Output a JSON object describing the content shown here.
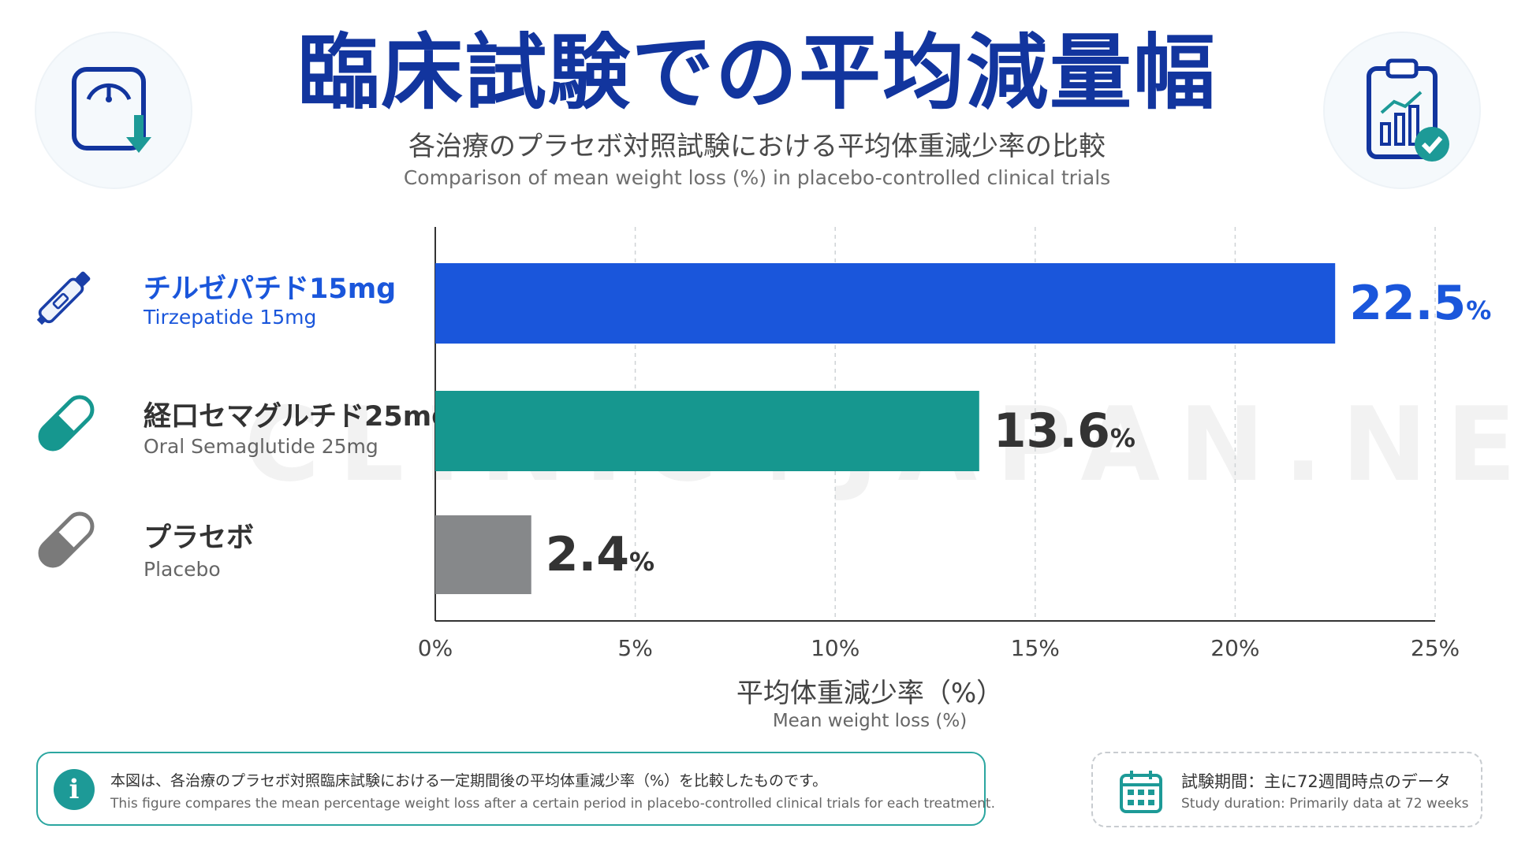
{
  "header": {
    "title": "臨床試験での平均減量幅",
    "subtitle_jp": "各治療のプラセボ対照試験における平均体重減少率の比較",
    "subtitle_en": "Comparison of mean weight loss (%) in placebo-controlled clinical trials"
  },
  "icons": {
    "top_left": "scale-weight-down-icon",
    "top_right": "clipboard-chart-check-icon",
    "row_icons": [
      "injection-pen-icon",
      "capsule-icon",
      "capsule-icon"
    ],
    "info": "info-icon",
    "calendar": "calendar-icon"
  },
  "rows": [
    {
      "label_jp": "チルゼパチド15mg",
      "label_en": "Tirzepatide 15mg",
      "value_text": "22.5",
      "unit": "%",
      "color": "#1a56db",
      "label_color": "#1a56db"
    },
    {
      "label_jp": "経口セマグルチド25mg",
      "label_en": "Oral Semaglutide 25mg",
      "value_text": "13.6",
      "unit": "%",
      "color": "#16978f",
      "label_color": "#333333"
    },
    {
      "label_jp": "プラセボ",
      "label_en": "Placebo",
      "value_text": "2.4",
      "unit": "%",
      "color": "#86888a",
      "label_color": "#333333"
    }
  ],
  "chart_data": {
    "type": "bar",
    "orientation": "horizontal",
    "categories": [
      "チルゼパチド15mg",
      "経口セマグルチド25mg",
      "プラセボ"
    ],
    "values": [
      22.5,
      13.6,
      2.4
    ],
    "colors": [
      "#1a56db",
      "#16978f",
      "#86888a"
    ],
    "xlim": [
      0,
      25
    ],
    "xticks": [
      0,
      5,
      10,
      15,
      20,
      25
    ],
    "xtick_labels": [
      "0%",
      "5%",
      "10%",
      "15%",
      "20%",
      "25%"
    ],
    "xlabel": "平均体重減少率（%）",
    "xlabel_en": "Mean weight loss (%)",
    "grid": "vertical dashed"
  },
  "watermark": {
    "text": "CLINIC+JAPAN.NET"
  },
  "info_box": {
    "text_jp": "本図は、各治療のプラセボ対照臨床試験における一定期間後の平均体重減少率（%）を比較したものです。",
    "text_en": "This figure compares the mean percentage weight loss after a certain period in placebo-controlled clinical trials for each treatment."
  },
  "period_box": {
    "text_jp": "試験期間：主に72週間時点のデータ",
    "text_en": "Study duration: Primarily data at 72 weeks"
  }
}
